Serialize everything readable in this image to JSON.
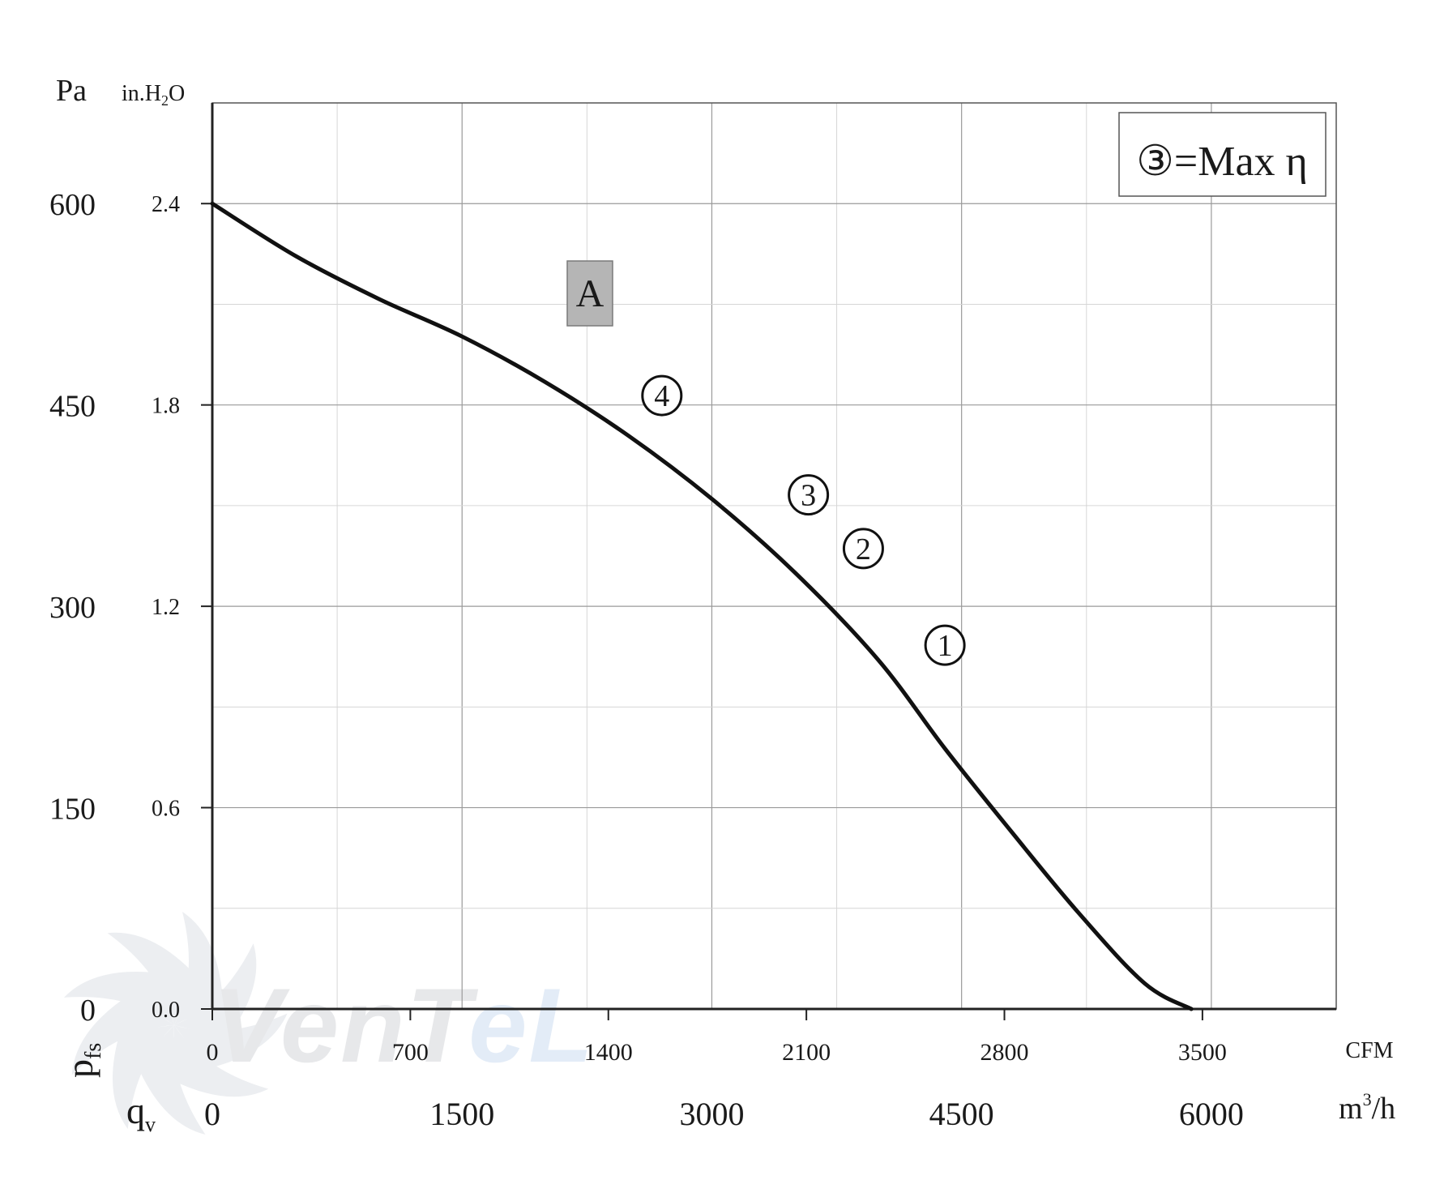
{
  "chart_data": {
    "type": "line",
    "title": "",
    "y_units_primary": "Pa",
    "y_units_secondary": "in.H",
    "y_units_secondary_sub": "2",
    "y_units_secondary_tail": "O",
    "y_symbol": "p",
    "y_symbol_sub": "fs",
    "x_symbol": "q",
    "x_symbol_sub": "v",
    "x_units_primary": "m",
    "x_units_primary_sup": "3",
    "x_units_primary_tail": "/h",
    "x_units_secondary": "CFM",
    "xlim": [
      0,
      6750
    ],
    "ylim": [
      0,
      675
    ],
    "x_ticks_m3h": [
      "0",
      "1500",
      "3000",
      "4500",
      "6000"
    ],
    "x_ticks_cfm": [
      "0",
      "700",
      "1400",
      "2100",
      "2800",
      "3500"
    ],
    "y_ticks_pa": [
      "0",
      "150",
      "300",
      "450",
      "600"
    ],
    "y_ticks_inh2o": [
      "0.0",
      "0.6",
      "1.2",
      "1.8",
      "2.4"
    ],
    "series": [
      {
        "name": "A",
        "x": [
          0,
          500,
          1000,
          1500,
          2000,
          2500,
          3000,
          3500,
          4000,
          4400,
          4800,
          5200,
          5600,
          5880
        ],
        "y": [
          600,
          561,
          529,
          501,
          467,
          427,
          380,
          325,
          260,
          194,
          132,
          72,
          19,
          0
        ]
      }
    ],
    "operating_points": [
      {
        "label": "4",
        "x": 2700,
        "y": 457
      },
      {
        "label": "3",
        "x": 3580,
        "y": 383
      },
      {
        "label": "2",
        "x": 3910,
        "y": 343
      },
      {
        "label": "1",
        "x": 4400,
        "y": 271
      }
    ],
    "curve_label": "A",
    "legend_text": "③=Max η",
    "watermark": "VENTEL"
  }
}
